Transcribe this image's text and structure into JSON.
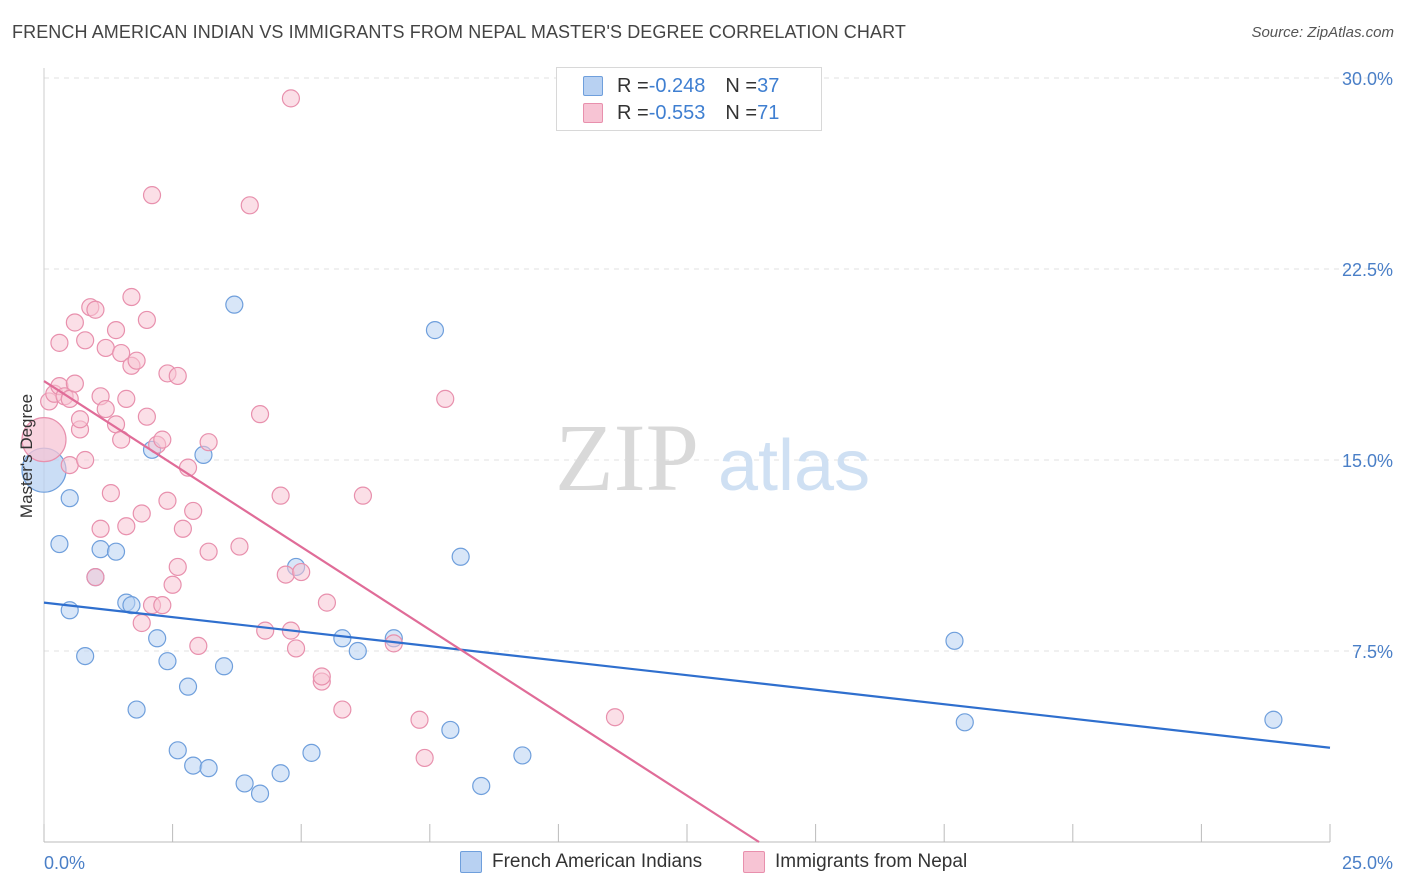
{
  "title": "FRENCH AMERICAN INDIAN VS IMMIGRANTS FROM NEPAL MASTER'S DEGREE CORRELATION CHART",
  "source": "Source: ZipAtlas.com",
  "watermark": {
    "zip": "ZIP",
    "atlas": "atlas"
  },
  "legend_top": [
    {
      "r_label": "R = ",
      "r_value": "-0.248",
      "n_label": "N = ",
      "n_value": "37"
    },
    {
      "r_label": "R = ",
      "r_value": "-0.553",
      "n_label": "N = ",
      "n_value": "71"
    }
  ],
  "colors": {
    "blue_fill": "#b8d1f2",
    "blue_stroke": "#6f9fdc",
    "blue_line": "#2f6fce",
    "pink_fill": "#f7c4d4",
    "pink_stroke": "#e890ad",
    "pink_line": "#e06c98",
    "axis_text": "#4a7fc7",
    "grid": "#e2e2e2"
  },
  "chart_data": {
    "type": "scatter",
    "title": "FRENCH AMERICAN INDIAN VS IMMIGRANTS FROM NEPAL MASTER'S DEGREE CORRELATION CHART",
    "xlabel": "",
    "ylabel": "Master's Degree",
    "xlim": [
      0,
      25
    ],
    "ylim": [
      0,
      30
    ],
    "x_tick_labels": [
      "0.0%",
      "25.0%"
    ],
    "y_ticks": [
      7.5,
      15.0,
      22.5,
      30.0
    ],
    "y_tick_labels": [
      "7.5%",
      "15.0%",
      "22.5%",
      "30.0%"
    ],
    "grid": "horizontal dashed",
    "legend_placement": "bottom",
    "series": [
      {
        "name": "French American Indians",
        "color": "#b8d1f2",
        "trend": {
          "x": [
            0,
            25
          ],
          "y": [
            9.4,
            3.7
          ]
        },
        "points": [
          [
            0.0,
            14.6,
            "large"
          ],
          [
            0.3,
            11.7
          ],
          [
            0.5,
            13.5
          ],
          [
            0.5,
            9.1
          ],
          [
            0.8,
            7.3
          ],
          [
            1.0,
            10.4
          ],
          [
            1.1,
            11.5
          ],
          [
            1.4,
            11.4
          ],
          [
            1.6,
            9.4
          ],
          [
            1.7,
            9.3
          ],
          [
            2.1,
            15.4
          ],
          [
            2.2,
            8.0
          ],
          [
            2.4,
            7.1
          ],
          [
            1.8,
            5.2
          ],
          [
            2.6,
            3.6
          ],
          [
            2.8,
            6.1
          ],
          [
            2.9,
            3.0
          ],
          [
            3.2,
            2.9
          ],
          [
            3.1,
            15.2
          ],
          [
            3.5,
            6.9
          ],
          [
            3.7,
            21.1
          ],
          [
            3.9,
            2.3
          ],
          [
            4.2,
            1.9
          ],
          [
            4.6,
            2.7
          ],
          [
            4.9,
            10.8
          ],
          [
            5.2,
            3.5
          ],
          [
            5.8,
            8.0
          ],
          [
            6.1,
            7.5
          ],
          [
            6.8,
            8.0
          ],
          [
            7.6,
            20.1
          ],
          [
            7.9,
            4.4
          ],
          [
            8.1,
            11.2
          ],
          [
            8.5,
            2.2
          ],
          [
            9.3,
            3.4
          ],
          [
            17.7,
            7.9
          ],
          [
            17.9,
            4.7
          ],
          [
            23.9,
            4.8
          ]
        ]
      },
      {
        "name": "Immigrants from Nepal",
        "color": "#f7c4d4",
        "trend": {
          "x": [
            0,
            13.9
          ],
          "y": [
            18.1,
            0
          ]
        },
        "points": [
          [
            0.0,
            15.8,
            "large"
          ],
          [
            0.1,
            17.3
          ],
          [
            0.2,
            17.6
          ],
          [
            0.3,
            17.9
          ],
          [
            0.3,
            19.6
          ],
          [
            0.4,
            17.5
          ],
          [
            0.5,
            17.4
          ],
          [
            0.5,
            14.8
          ],
          [
            0.6,
            18.0
          ],
          [
            0.6,
            20.4
          ],
          [
            0.7,
            16.2
          ],
          [
            0.7,
            16.6
          ],
          [
            0.8,
            19.7
          ],
          [
            0.8,
            15.0
          ],
          [
            0.9,
            21.0
          ],
          [
            1.0,
            20.9
          ],
          [
            1.0,
            10.4
          ],
          [
            1.1,
            17.5
          ],
          [
            1.1,
            12.3
          ],
          [
            1.2,
            17.0
          ],
          [
            1.2,
            19.4
          ],
          [
            1.3,
            13.7
          ],
          [
            1.4,
            20.1
          ],
          [
            1.4,
            16.4
          ],
          [
            1.5,
            19.2
          ],
          [
            1.5,
            15.8
          ],
          [
            1.6,
            17.4
          ],
          [
            1.6,
            12.4
          ],
          [
            1.7,
            21.4
          ],
          [
            1.7,
            18.7
          ],
          [
            1.8,
            18.9
          ],
          [
            1.9,
            12.9
          ],
          [
            1.9,
            8.6
          ],
          [
            2.0,
            20.5
          ],
          [
            2.0,
            16.7
          ],
          [
            2.1,
            25.4
          ],
          [
            2.1,
            9.3
          ],
          [
            2.2,
            15.6
          ],
          [
            2.3,
            15.8
          ],
          [
            2.3,
            9.3
          ],
          [
            2.4,
            18.4
          ],
          [
            2.4,
            13.4
          ],
          [
            2.5,
            10.1
          ],
          [
            2.6,
            18.3
          ],
          [
            2.6,
            10.8
          ],
          [
            2.7,
            12.3
          ],
          [
            2.8,
            14.7
          ],
          [
            2.9,
            13.0
          ],
          [
            3.0,
            7.7
          ],
          [
            3.2,
            15.7
          ],
          [
            3.2,
            11.4
          ],
          [
            3.8,
            11.6
          ],
          [
            4.0,
            25.0
          ],
          [
            4.2,
            16.8
          ],
          [
            4.3,
            8.3
          ],
          [
            4.6,
            13.6
          ],
          [
            4.7,
            10.5
          ],
          [
            4.8,
            29.2
          ],
          [
            4.8,
            8.3
          ],
          [
            4.9,
            7.6
          ],
          [
            5.0,
            10.6
          ],
          [
            5.4,
            6.3
          ],
          [
            5.4,
            6.5
          ],
          [
            5.5,
            9.4
          ],
          [
            5.8,
            5.2
          ],
          [
            6.2,
            13.6
          ],
          [
            6.8,
            7.8
          ],
          [
            7.3,
            4.8
          ],
          [
            7.4,
            3.3
          ],
          [
            7.8,
            17.4
          ],
          [
            11.1,
            4.9
          ]
        ]
      }
    ]
  }
}
